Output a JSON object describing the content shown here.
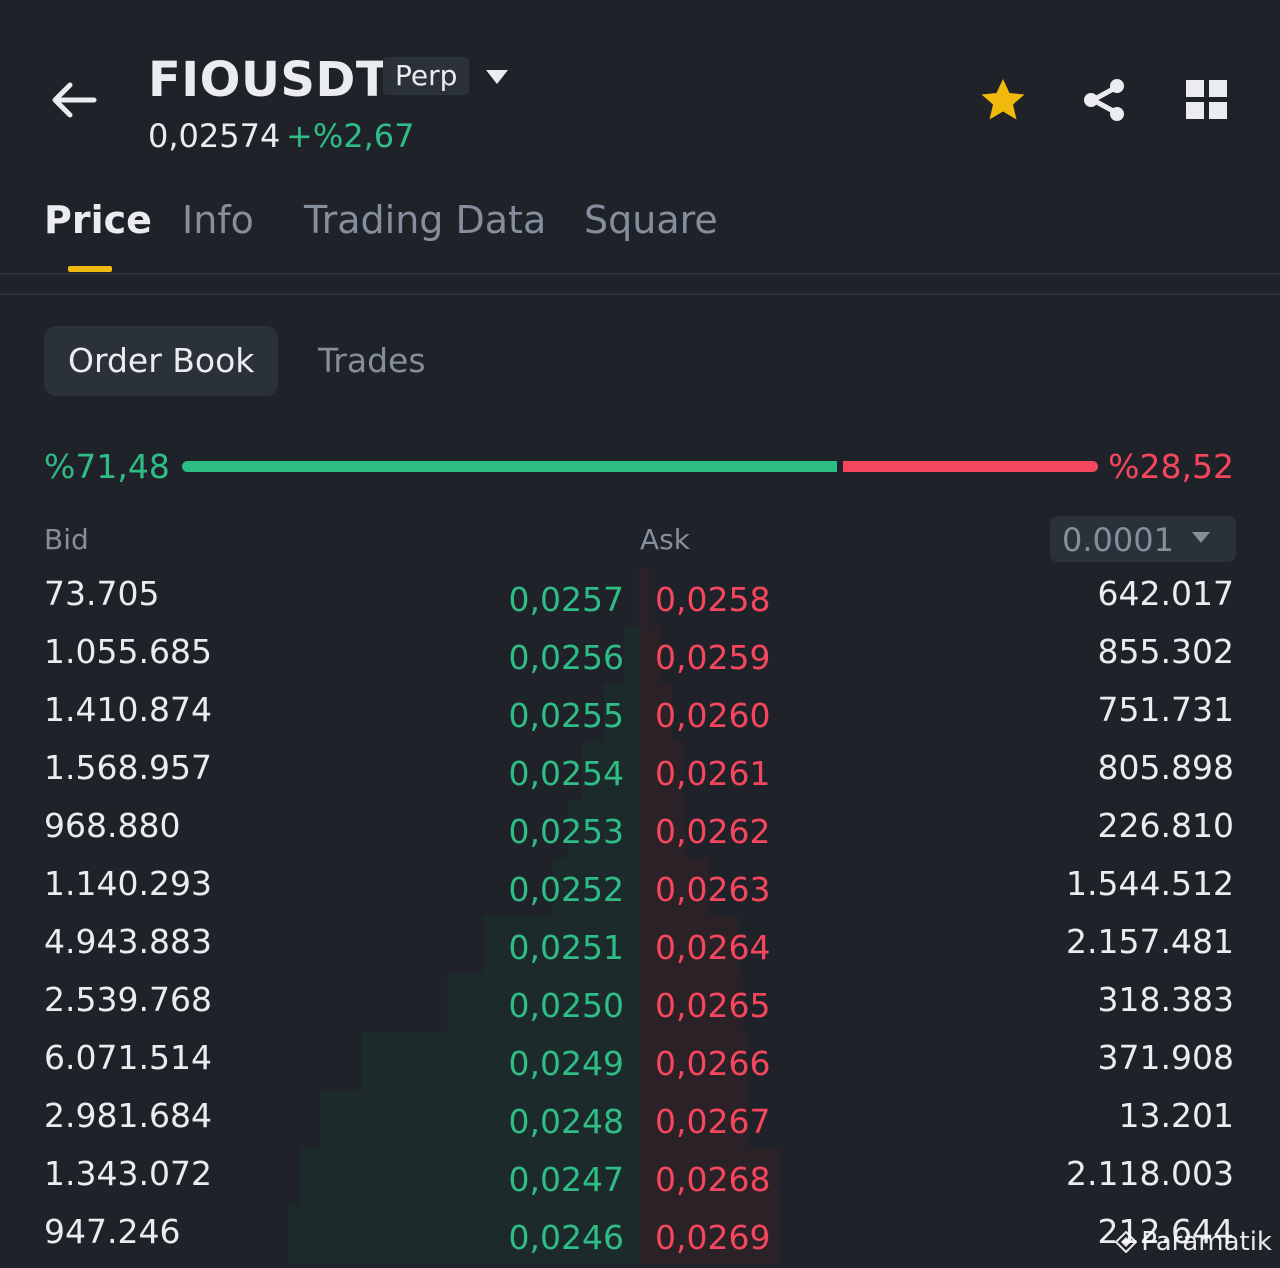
{
  "header": {
    "symbol": "FIOUSDT",
    "contract_type": "Perp",
    "last_price": "0,02574",
    "change_pct": "+%2,67",
    "favorite_color": "#f0b90b"
  },
  "tabs": [
    {
      "label": "Price"
    },
    {
      "label": "Info"
    },
    {
      "label": "Trading Data"
    },
    {
      "label": "Square"
    }
  ],
  "subtabs": [
    {
      "label": "Order Book"
    },
    {
      "label": "Trades"
    }
  ],
  "ratio": {
    "bid_pct": "%71,48",
    "ask_pct": "%28,52",
    "bid_fraction": 0.7148
  },
  "columns": {
    "bid": "Bid",
    "ask": "Ask",
    "precision": "0.0001"
  },
  "orderbook": [
    {
      "bid_qty": "73.705",
      "bid_price": "0,0257",
      "ask_price": "0,0258",
      "ask_qty": "642.017"
    },
    {
      "bid_qty": "1.055.685",
      "bid_price": "0,0256",
      "ask_price": "0,0259",
      "ask_qty": "855.302"
    },
    {
      "bid_qty": "1.410.874",
      "bid_price": "0,0255",
      "ask_price": "0,0260",
      "ask_qty": "751.731"
    },
    {
      "bid_qty": "1.568.957",
      "bid_price": "0,0254",
      "ask_price": "0,0261",
      "ask_qty": "805.898"
    },
    {
      "bid_qty": "968.880",
      "bid_price": "0,0253",
      "ask_price": "0,0262",
      "ask_qty": "226.810"
    },
    {
      "bid_qty": "1.140.293",
      "bid_price": "0,0252",
      "ask_price": "0,0263",
      "ask_qty": "1.544.512"
    },
    {
      "bid_qty": "4.943.883",
      "bid_price": "0,0251",
      "ask_price": "0,0264",
      "ask_qty": "2.157.481"
    },
    {
      "bid_qty": "2.539.768",
      "bid_price": "0,0250",
      "ask_price": "0,0265",
      "ask_qty": "318.383"
    },
    {
      "bid_qty": "6.071.514",
      "bid_price": "0,0249",
      "ask_price": "0,0266",
      "ask_qty": "371.908"
    },
    {
      "bid_qty": "2.981.684",
      "bid_price": "0,0248",
      "ask_price": "0,0267",
      "ask_qty": "13.201"
    },
    {
      "bid_qty": "1.343.072",
      "bid_price": "0,0247",
      "ask_price": "0,0268",
      "ask_qty": "2.118.003"
    },
    {
      "bid_qty": "947.246",
      "bid_price": "0,0246",
      "ask_price": "0,0269",
      "ask_qty": "212.644"
    }
  ],
  "watermark": "Paramatik"
}
